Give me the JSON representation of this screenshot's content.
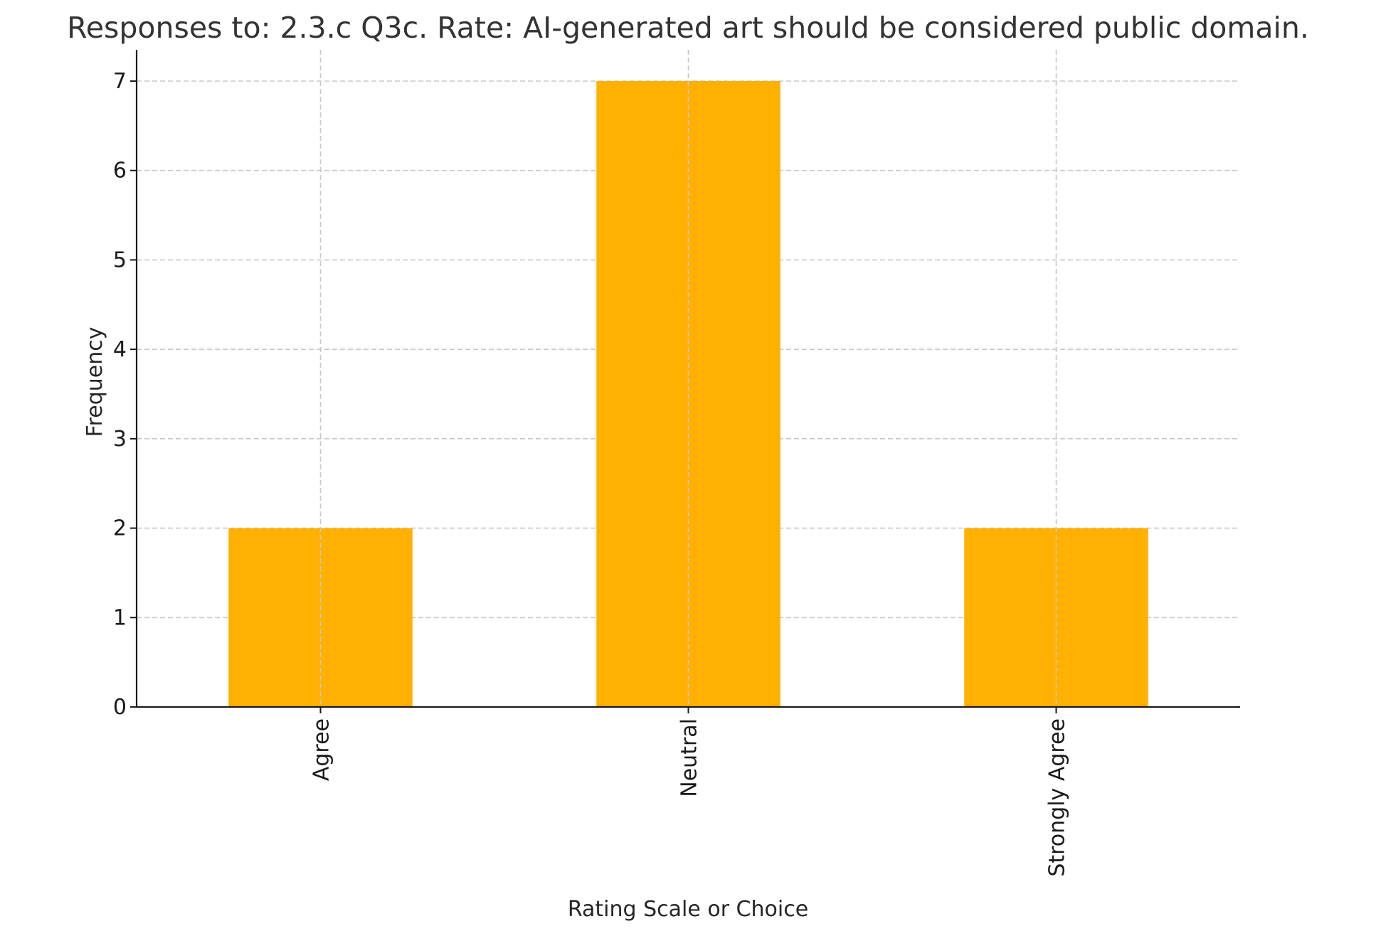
{
  "chart_data": {
    "type": "bar",
    "title": "Responses to: 2.3.c Q3c. Rate: AI-generated art should be considered public domain.",
    "xlabel": "Rating Scale or Choice",
    "ylabel": "Frequency",
    "categories": [
      "Agree",
      "Neutral",
      "Strongly Agree"
    ],
    "values": [
      2,
      7,
      2
    ],
    "ylim": [
      0,
      7.35
    ],
    "yticks": [
      "0",
      "1",
      "2",
      "3",
      "4",
      "5",
      "6",
      "7"
    ],
    "grid": true,
    "bar_color": "#FFB000",
    "legend": "none"
  }
}
